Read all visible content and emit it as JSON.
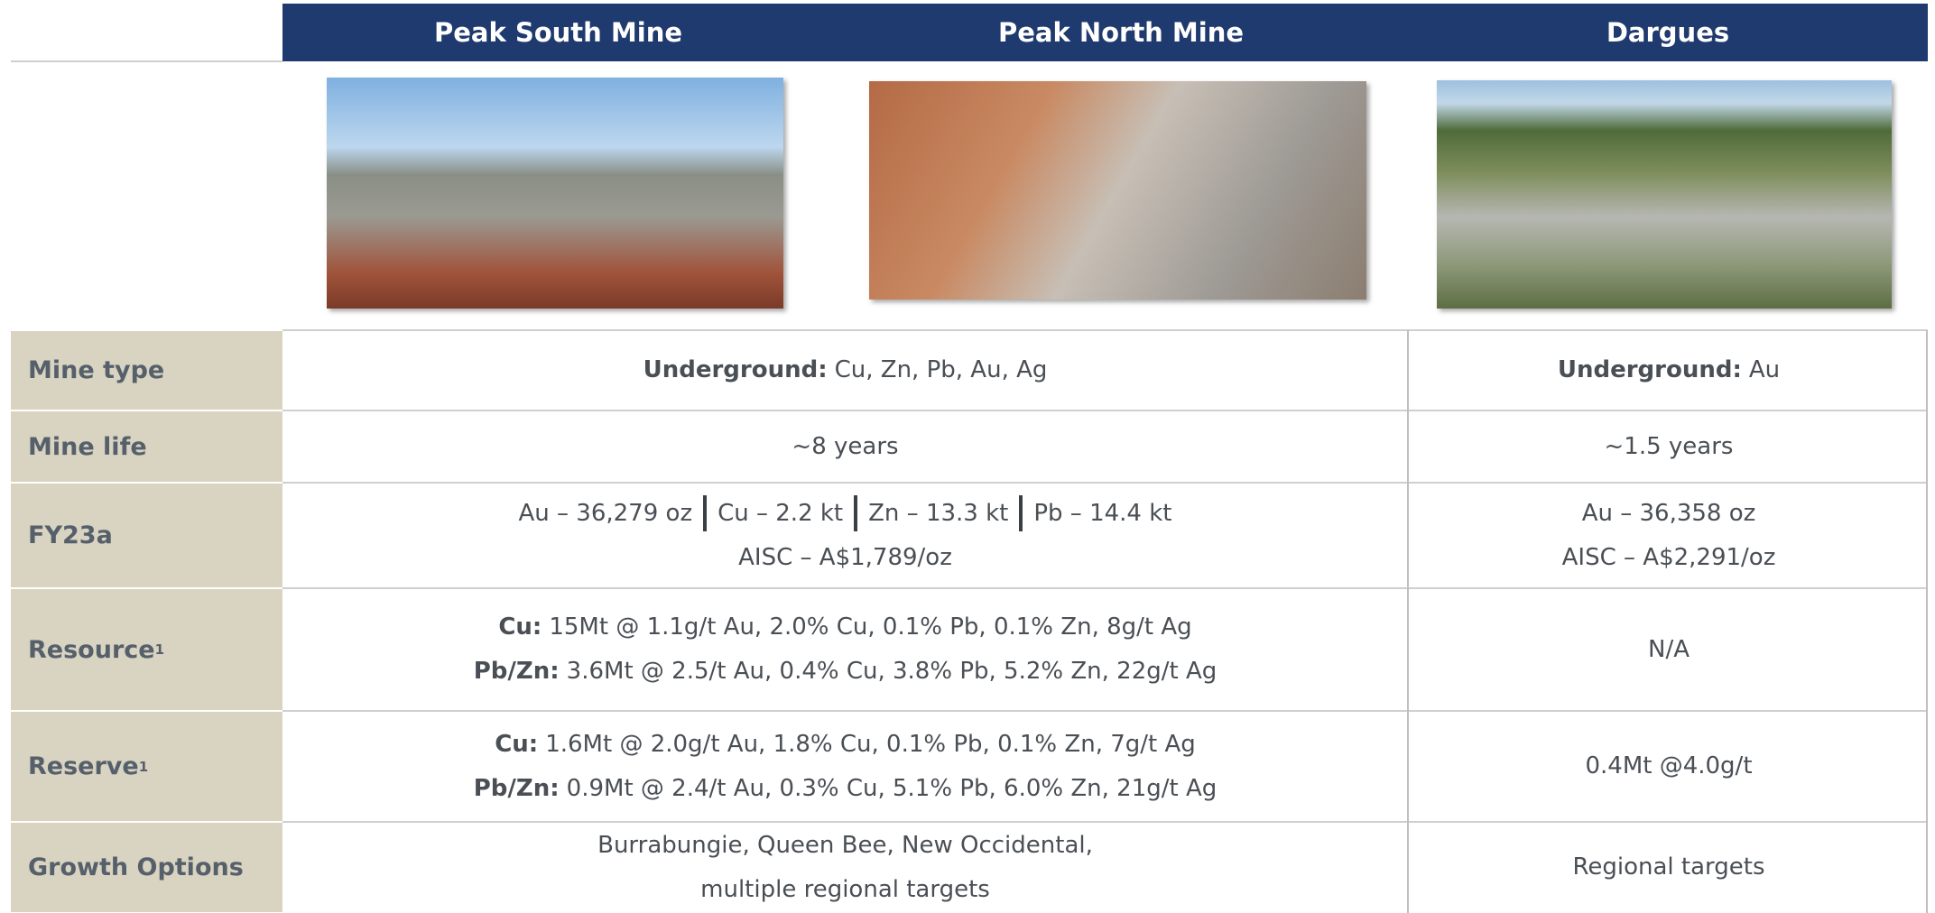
{
  "header": {
    "columns": [
      "Peak South Mine",
      "Peak North Mine",
      "Dargues"
    ]
  },
  "rows": [
    {
      "label": "Mine type",
      "main": [
        {
          "bold": "Underground:",
          "text": "Cu, Zn, Pb, Au, Ag"
        }
      ],
      "dargues": [
        {
          "bold": "Underground:",
          "text": "Au"
        }
      ]
    },
    {
      "label": "Mine life",
      "main": [
        {
          "text": "~8 years"
        }
      ],
      "dargues": [
        {
          "text": "~1.5 years"
        }
      ]
    },
    {
      "label": "FY23a",
      "main": [
        {
          "parts": [
            "Au – 36,279 oz",
            "Cu – 2.2 kt",
            "Zn – 13.3 kt",
            "Pb – 14.4 kt"
          ]
        },
        {
          "text": "AISC – A$1,789/oz"
        }
      ],
      "dargues": [
        {
          "text": "Au – 36,358 oz"
        },
        {
          "text": "AISC – A$2,291/oz"
        }
      ]
    },
    {
      "label": "Resource",
      "sup": "1",
      "main": [
        {
          "bold": "Cu:",
          "text": "15Mt @ 1.1g/t Au, 2.0% Cu, 0.1% Pb, 0.1% Zn, 8g/t Ag"
        },
        {
          "bold": "Pb/Zn:",
          "text": "3.6Mt @ 2.5/t Au, 0.4% Cu, 3.8% Pb, 5.2% Zn, 22g/t Ag"
        }
      ],
      "dargues": [
        {
          "text": "N/A"
        }
      ]
    },
    {
      "label": "Reserve",
      "sup": "1",
      "main": [
        {
          "bold": "Cu:",
          "text": "1.6Mt @ 2.0g/t Au, 1.8% Cu, 0.1% Pb, 0.1% Zn, 7g/t Ag"
        },
        {
          "bold": "Pb/Zn:",
          "text": "0.9Mt @ 2.4/t Au, 0.3% Cu, 5.1% Pb, 6.0% Zn, 21g/t Ag"
        }
      ],
      "dargues": [
        {
          "text": "0.4Mt @4.0g/t"
        }
      ]
    },
    {
      "label": "Growth Options",
      "main": [
        {
          "text": "Burrabungie, Queen Bee, New Occidental,"
        },
        {
          "text": "multiple regional targets"
        }
      ],
      "dargues": [
        {
          "text": "Regional targets"
        }
      ]
    }
  ]
}
